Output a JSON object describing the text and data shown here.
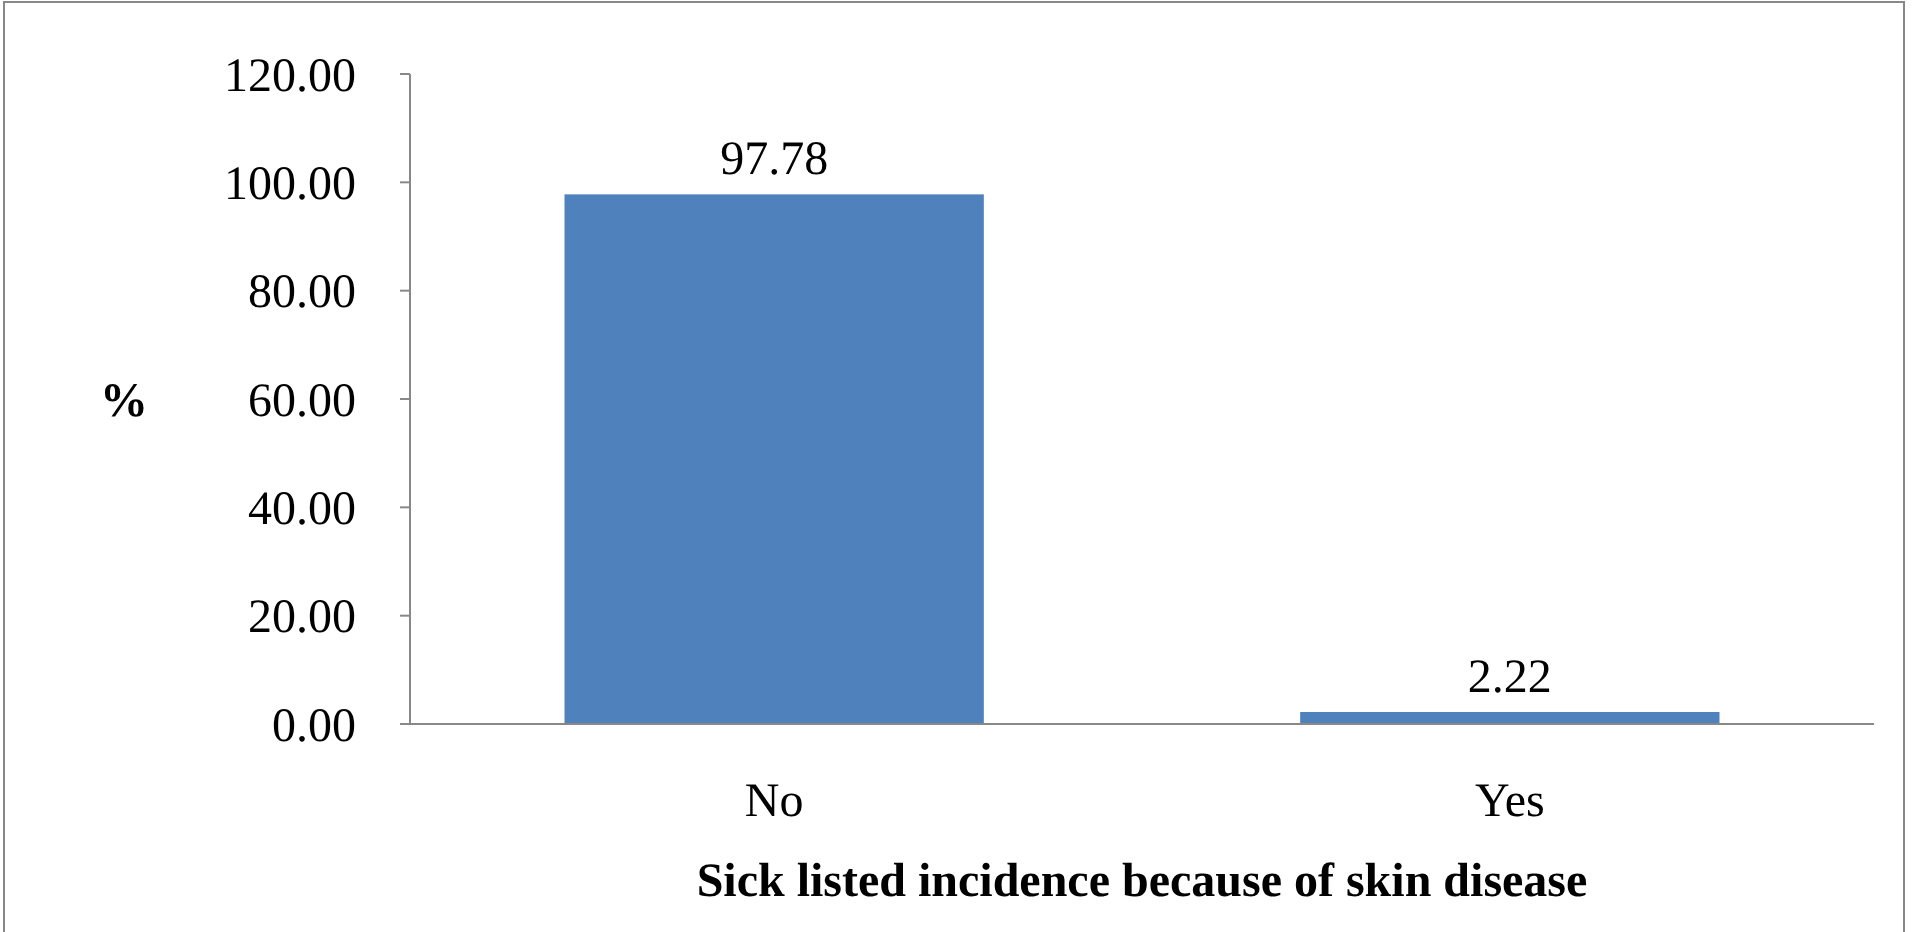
{
  "chart_data": {
    "type": "bar",
    "xlabel": "Sick listed incidence because of skin disease",
    "ylabel": "%",
    "categories": [
      "No",
      "Yes"
    ],
    "values": [
      97.78,
      2.22
    ],
    "color": "#4f81bd",
    "ylim": [
      0,
      120
    ],
    "yticks": [
      {
        "value": 0,
        "label": "0.00"
      },
      {
        "value": 20,
        "label": "20.00"
      },
      {
        "value": 40,
        "label": "40.00"
      },
      {
        "value": 60,
        "label": "60.00"
      },
      {
        "value": 80,
        "label": "80.00"
      },
      {
        "value": 100,
        "label": "100.00"
      },
      {
        "value": 120,
        "label": "120.00"
      }
    ],
    "data_labels": true
  }
}
